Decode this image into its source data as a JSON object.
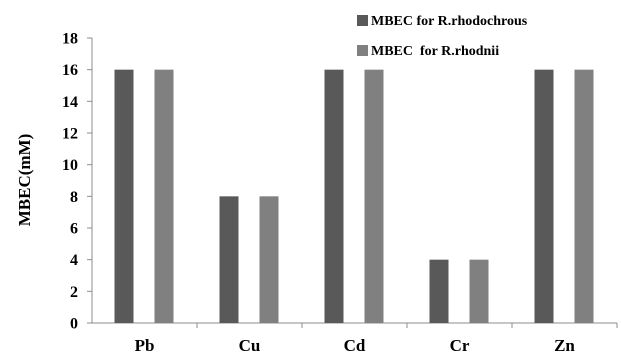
{
  "chart_data": {
    "type": "bar",
    "categories": [
      "Pb",
      "Cu",
      "Cd",
      "Cr",
      "Zn"
    ],
    "series": [
      {
        "name": "MBEC for R.rhodochrous",
        "values": [
          16,
          8,
          16,
          4,
          16
        ],
        "color": "#595959"
      },
      {
        "name": "MBEC  for R.rhodnii",
        "values": [
          16,
          8,
          16,
          4,
          16
        ],
        "color": "#808080"
      }
    ],
    "ylabel": "MBEC(mM)",
    "xlabel": "",
    "ylim": [
      0,
      18
    ],
    "yticks": [
      "0",
      "2",
      "4",
      "6",
      "8",
      "10",
      "12",
      "14",
      "16",
      "18"
    ],
    "grid": false,
    "legend_position": "top-right"
  }
}
